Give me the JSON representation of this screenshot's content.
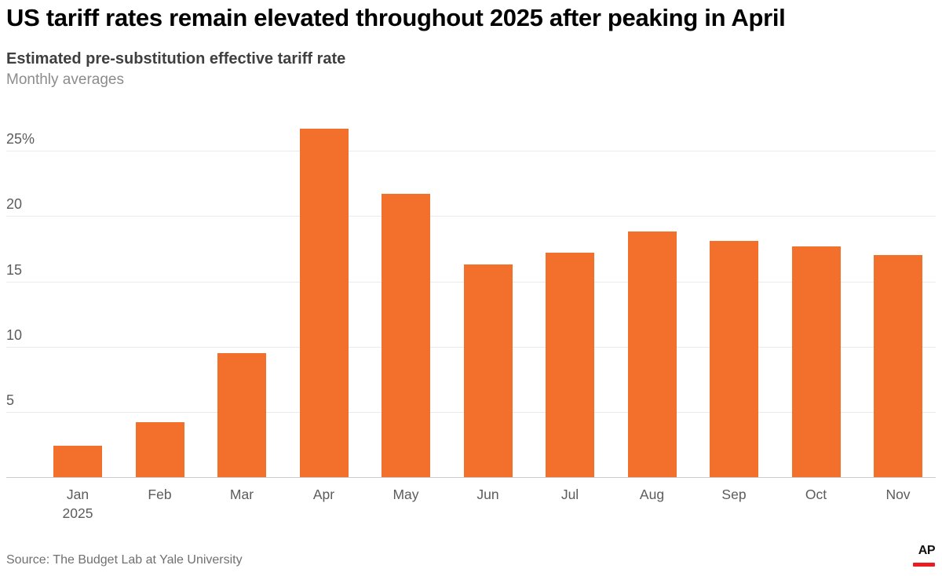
{
  "header": {
    "title": "US tariff rates remain elevated throughout 2025 after peaking in April",
    "subtitle": "Estimated pre-substitution effective tariff rate",
    "description": "Monthly averages"
  },
  "chart_data": {
    "type": "bar",
    "title": "US tariff rates remain elevated throughout 2025 after peaking in April",
    "subtitle": "Estimated pre-substitution effective tariff rate",
    "note": "Monthly averages",
    "categories": [
      "Jan",
      "Feb",
      "Mar",
      "Apr",
      "May",
      "Jun",
      "Jul",
      "Aug",
      "Sep",
      "Oct",
      "Nov"
    ],
    "first_category_year": "2025",
    "values": [
      2.4,
      4.2,
      9.5,
      26.7,
      21.7,
      16.3,
      17.2,
      18.8,
      18.1,
      17.7,
      17.0
    ],
    "unit": "percent",
    "y_ticks": [
      5,
      10,
      15,
      20,
      25
    ],
    "y_tick_labels": [
      "5",
      "10",
      "15",
      "20",
      "25%"
    ],
    "ylim": [
      0,
      27.5
    ],
    "grid": true,
    "legend": false,
    "bar_color": "#f26f2c"
  },
  "footer": {
    "source": "Source: The Budget Lab at Yale University",
    "logo_text": "AP"
  },
  "colors": {
    "bar": "#f26f2c",
    "gridline": "#eaeaea",
    "axis_line": "#cccccc",
    "axis_text": "#5c5c5c",
    "title_text": "#000000",
    "subtitle_text": "#3f3f3f",
    "note_text": "#8c8c8c",
    "source_text": "#707070",
    "ap_red": "#ea1d25"
  }
}
